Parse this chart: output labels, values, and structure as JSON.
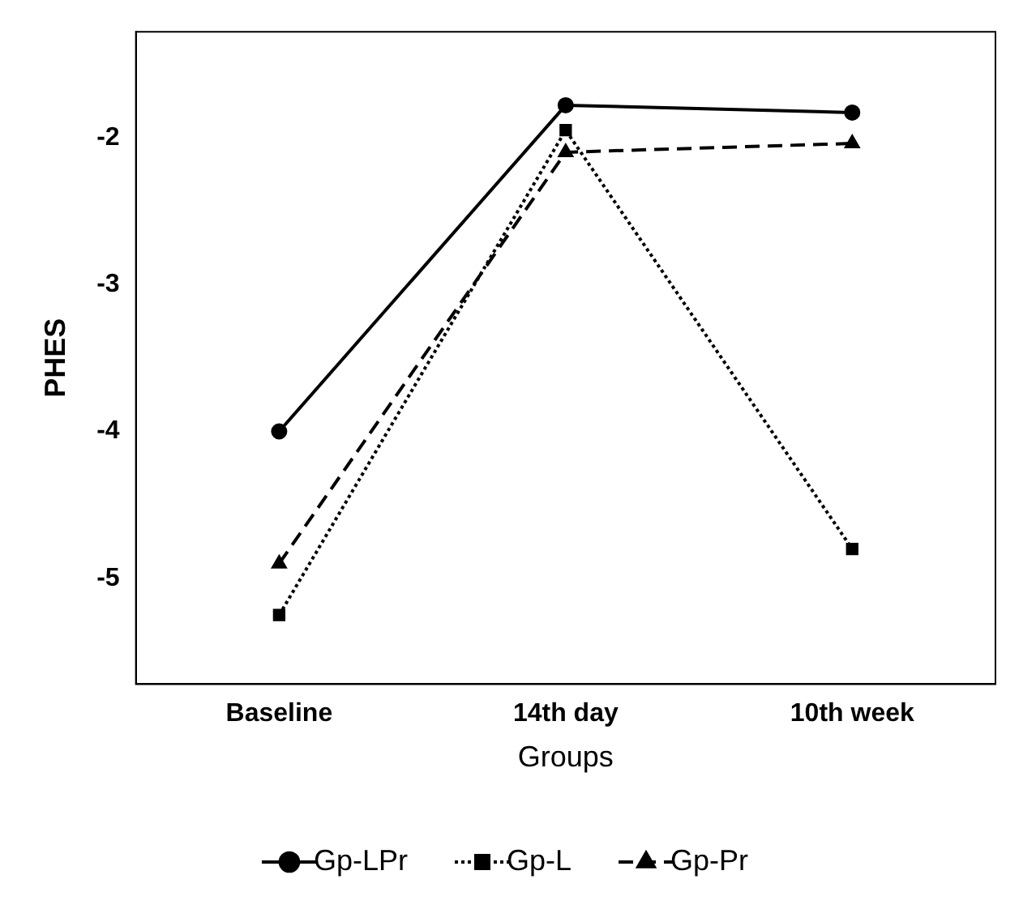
{
  "chart_data": {
    "type": "line",
    "xlabel": "Groups",
    "ylabel": "PHES",
    "categories": [
      "Baseline",
      "14th day",
      "10th week"
    ],
    "ylim": [
      -5.72,
      -1.28
    ],
    "yticks": [
      -2,
      -3,
      -4,
      -5
    ],
    "grid": false,
    "legend": "bottom",
    "series": [
      {
        "name": "Gp-LPr",
        "color": "#000000",
        "values": [
          -4.0,
          -1.78,
          -1.83
        ],
        "marker": "circle",
        "line_style": "solid"
      },
      {
        "name": "Gp-L",
        "color": "#000000",
        "values": [
          -5.25,
          -1.95,
          -4.8
        ],
        "marker": "square",
        "line_style": "dotted"
      },
      {
        "name": "Gp-Pr",
        "color": "#000000",
        "values": [
          -4.9,
          -2.1,
          -2.04
        ],
        "marker": "triangle",
        "line_style": "dashed"
      }
    ]
  }
}
